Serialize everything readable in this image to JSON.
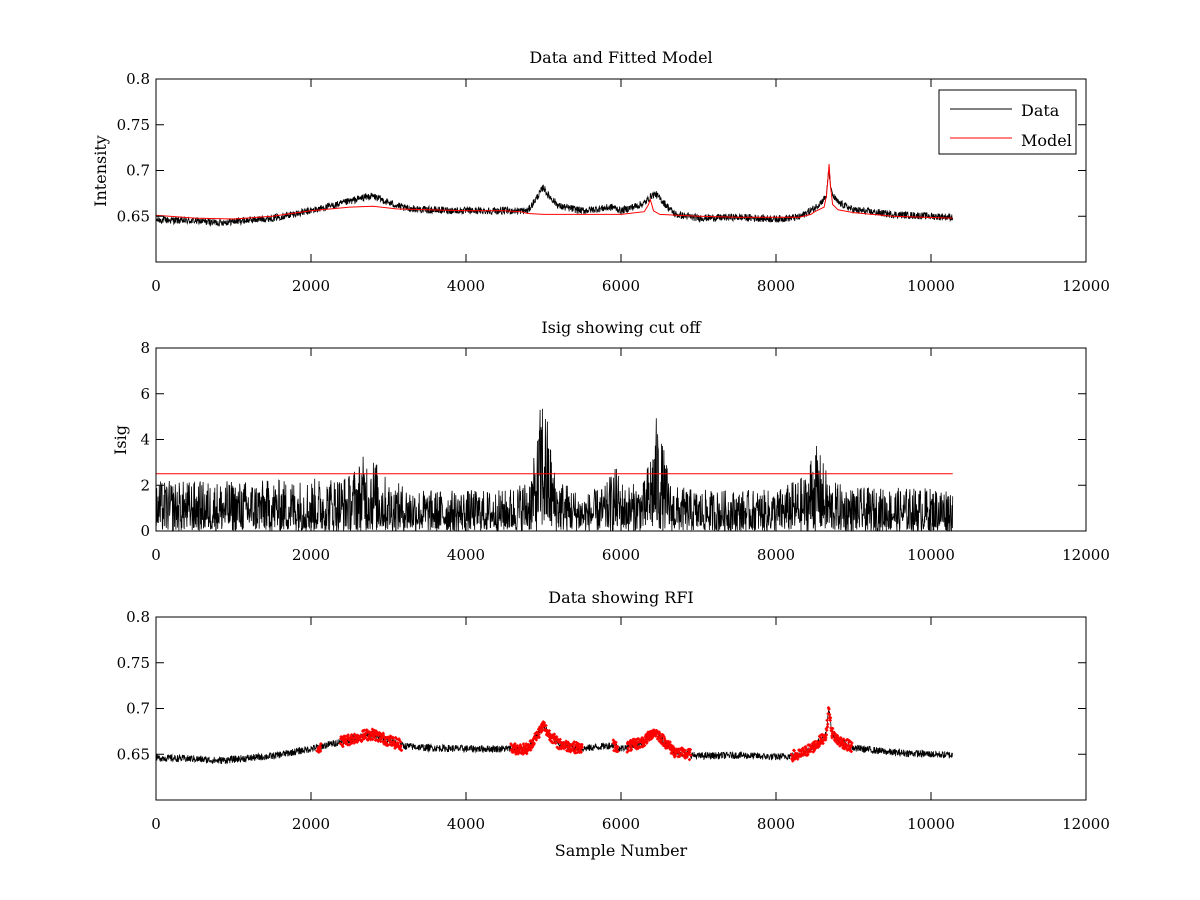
{
  "chart_data": [
    {
      "type": "line",
      "title": "Data and Fitted Model",
      "xlabel": "",
      "ylabel": "Intensity",
      "xlim": [
        0,
        12000
      ],
      "ylim": [
        0.6,
        0.8
      ],
      "xticks": [
        0,
        2000,
        4000,
        6000,
        8000,
        10000,
        12000
      ],
      "yticks": [
        0.65,
        0.7,
        0.75,
        0.8
      ],
      "x_tick_labels": [
        "0",
        "2000",
        "4000",
        "6000",
        "8000",
        "10000",
        "12000"
      ],
      "y_tick_labels": [
        "0.65",
        "0.7",
        "0.75",
        "0.8"
      ],
      "grid": false,
      "legend_position": "top-right",
      "series": [
        {
          "name": "Data",
          "color": "#000000",
          "style": "noisy-line",
          "noise": 0.004,
          "x": [
            0,
            500,
            800,
            1500,
            2000,
            2400,
            2700,
            2800,
            3000,
            3200,
            3500,
            4000,
            4500,
            4800,
            4950,
            5000,
            5050,
            5200,
            5500,
            5900,
            6000,
            6300,
            6400,
            6450,
            6550,
            6700,
            7000,
            7500,
            8000,
            8300,
            8500,
            8600,
            8650,
            8680,
            8720,
            8800,
            9000,
            9500,
            10280
          ],
          "y": [
            0.646,
            0.645,
            0.643,
            0.648,
            0.656,
            0.664,
            0.671,
            0.672,
            0.665,
            0.659,
            0.657,
            0.656,
            0.656,
            0.656,
            0.675,
            0.682,
            0.674,
            0.661,
            0.656,
            0.66,
            0.656,
            0.664,
            0.673,
            0.674,
            0.665,
            0.652,
            0.648,
            0.649,
            0.647,
            0.649,
            0.659,
            0.667,
            0.672,
            0.7,
            0.674,
            0.665,
            0.657,
            0.652,
            0.649
          ]
        },
        {
          "name": "Model",
          "color": "#ff0000",
          "style": "line",
          "x": [
            0,
            500,
            1000,
            1500,
            2000,
            2500,
            2800,
            3100,
            3500,
            4000,
            4500,
            4700,
            4800,
            5000,
            5500,
            6000,
            6300,
            6350,
            6380,
            6420,
            6500,
            7000,
            7500,
            8000,
            8300,
            8450,
            8500,
            8550,
            8620,
            8650,
            8670,
            8685,
            8700,
            8730,
            8800,
            9000,
            9500,
            10280
          ],
          "y": [
            0.651,
            0.648,
            0.647,
            0.65,
            0.656,
            0.66,
            0.661,
            0.658,
            0.657,
            0.656,
            0.656,
            0.655,
            0.653,
            0.652,
            0.652,
            0.652,
            0.655,
            0.662,
            0.668,
            0.656,
            0.652,
            0.65,
            0.649,
            0.649,
            0.649,
            0.652,
            0.655,
            0.657,
            0.66,
            0.672,
            0.69,
            0.707,
            0.685,
            0.663,
            0.657,
            0.654,
            0.65,
            0.648
          ]
        }
      ]
    },
    {
      "type": "line",
      "title": "Isig showing cut off",
      "xlabel": "",
      "ylabel": "Isig",
      "xlim": [
        0,
        12000
      ],
      "ylim": [
        0,
        8
      ],
      "xticks": [
        0,
        2000,
        4000,
        6000,
        8000,
        10000,
        12000
      ],
      "yticks": [
        0,
        2,
        4,
        6,
        8
      ],
      "x_tick_labels": [
        "0",
        "2000",
        "4000",
        "6000",
        "8000",
        "10000",
        "12000"
      ],
      "y_tick_labels": [
        "0",
        "2",
        "4",
        "6",
        "8"
      ],
      "grid": false,
      "series": [
        {
          "color": "#000000",
          "style": "spiky-envelope",
          "x": [
            0,
            1000,
            2000,
            2500,
            2600,
            2700,
            2780,
            2850,
            3000,
            3500,
            4000,
            4500,
            4800,
            4900,
            4980,
            5050,
            5150,
            5500,
            5800,
            5920,
            6050,
            6300,
            6400,
            6460,
            6530,
            6650,
            7000,
            8000,
            8400,
            8480,
            8560,
            8700,
            9000,
            10000,
            10280
          ],
          "y": [
            2.2,
            2.2,
            2.3,
            2.5,
            3.0,
            3.4,
            3.5,
            3.0,
            2.2,
            1.8,
            1.8,
            1.8,
            2.3,
            3.5,
            6.3,
            5.0,
            2.5,
            1.6,
            2.0,
            2.9,
            2.0,
            2.2,
            3.9,
            5.1,
            4.0,
            2.0,
            1.8,
            1.8,
            2.5,
            4.0,
            3.5,
            2.2,
            1.9,
            1.9,
            2.0
          ]
        },
        {
          "color": "#ff0000",
          "style": "line",
          "x": [
            0,
            10280
          ],
          "y": [
            2.5,
            2.5
          ]
        }
      ]
    },
    {
      "type": "scatter",
      "title": "Data showing RFI",
      "xlabel": "Sample Number",
      "ylabel": "",
      "xlim": [
        0,
        12000
      ],
      "ylim": [
        0.6,
        0.8
      ],
      "xticks": [
        0,
        2000,
        4000,
        6000,
        8000,
        10000,
        12000
      ],
      "yticks": [
        0.65,
        0.7,
        0.75,
        0.8
      ],
      "x_tick_labels": [
        "0",
        "2000",
        "4000",
        "6000",
        "8000",
        "10000",
        "12000"
      ],
      "y_tick_labels": [
        "0.65",
        "0.7",
        "0.75",
        "0.8"
      ],
      "grid": false,
      "series": [
        {
          "color": "#000000",
          "style": "noisy-line",
          "noise": 0.004,
          "x": [
            0,
            500,
            800,
            1500,
            2000,
            2400,
            2700,
            2800,
            3000,
            3200,
            3500,
            4000,
            4500,
            4800,
            4950,
            5000,
            5050,
            5200,
            5500,
            5900,
            6000,
            6300,
            6400,
            6450,
            6550,
            6700,
            7000,
            7500,
            8000,
            8300,
            8500,
            8600,
            8650,
            8680,
            8720,
            8800,
            9000,
            9500,
            10280
          ],
          "y": [
            0.646,
            0.645,
            0.643,
            0.648,
            0.656,
            0.664,
            0.671,
            0.672,
            0.665,
            0.659,
            0.657,
            0.656,
            0.656,
            0.656,
            0.675,
            0.682,
            0.674,
            0.661,
            0.656,
            0.66,
            0.656,
            0.664,
            0.673,
            0.674,
            0.665,
            0.652,
            0.648,
            0.649,
            0.647,
            0.649,
            0.659,
            0.667,
            0.672,
            0.7,
            0.674,
            0.665,
            0.657,
            0.652,
            0.649
          ]
        },
        {
          "color": "#ff0000",
          "style": "flagged-points",
          "ranges": [
            [
              2080,
              2130
            ],
            [
              2380,
              3170
            ],
            [
              4580,
              5500
            ],
            [
              5900,
              5960
            ],
            [
              6080,
              6900
            ],
            [
              8200,
              8980
            ]
          ]
        }
      ]
    }
  ]
}
